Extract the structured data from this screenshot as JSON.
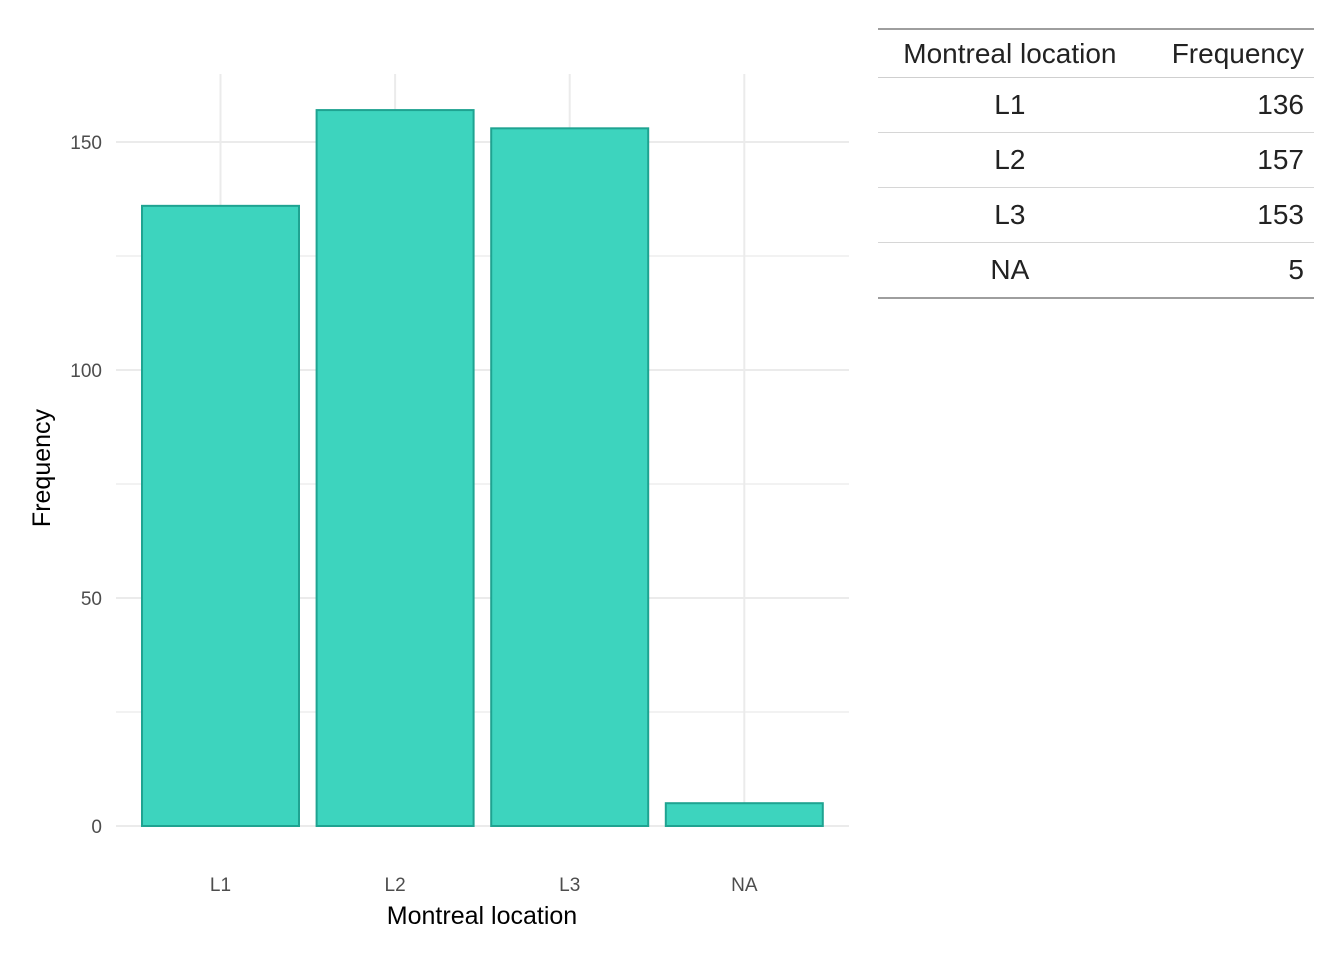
{
  "chart_data": {
    "type": "bar",
    "categories": [
      "L1",
      "L2",
      "L3",
      "NA"
    ],
    "values": [
      136,
      157,
      153,
      5
    ],
    "xlabel": "Montreal location",
    "ylabel": "Frequency",
    "ylim": [
      0,
      165
    ],
    "yticks": [
      0,
      50,
      100,
      150
    ],
    "grid": true,
    "bar_fill": "#3dd4be",
    "bar_stroke": "#1fa391",
    "grid_color": "#ebebeb"
  },
  "table": {
    "headers": [
      "Montreal location",
      "Frequency"
    ],
    "rows": [
      [
        "L1",
        "136"
      ],
      [
        "L2",
        "157"
      ],
      [
        "L3",
        "153"
      ],
      [
        "NA",
        "5"
      ]
    ]
  }
}
